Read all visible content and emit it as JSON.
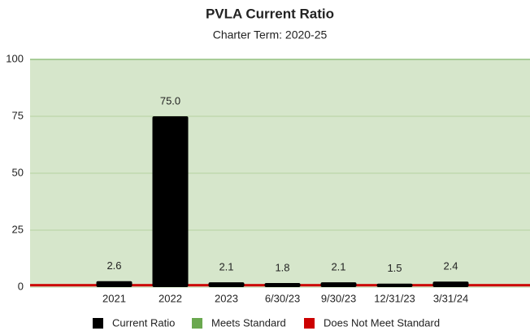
{
  "chart_data": {
    "type": "bar",
    "title": "PVLA Current Ratio",
    "subtitle": "Charter Term:  2020-25",
    "categories": [
      "2021",
      "2022",
      "2023",
      "6/30/23",
      "9/30/23",
      "12/31/23",
      "3/31/24"
    ],
    "series": [
      {
        "name": "Current Ratio",
        "color": "#000000",
        "values": [
          2.6,
          75,
          2.1,
          1.8,
          2.1,
          1.5,
          2.4
        ],
        "value_labels": [
          "2.6",
          "75.0",
          "2.1",
          "1.8",
          "2.1",
          "1.5",
          "2.4"
        ]
      }
    ],
    "bands": [
      {
        "name": "Meets Standard",
        "color": "#6aa84f",
        "range": [
          1,
          100
        ]
      },
      {
        "name": "Does Not Meet Standard",
        "color": "#cc0000",
        "range": [
          0,
          1
        ]
      }
    ],
    "ylim": [
      0,
      100
    ],
    "yticks": [
      0,
      25,
      50,
      75,
      100
    ],
    "grid": true
  }
}
